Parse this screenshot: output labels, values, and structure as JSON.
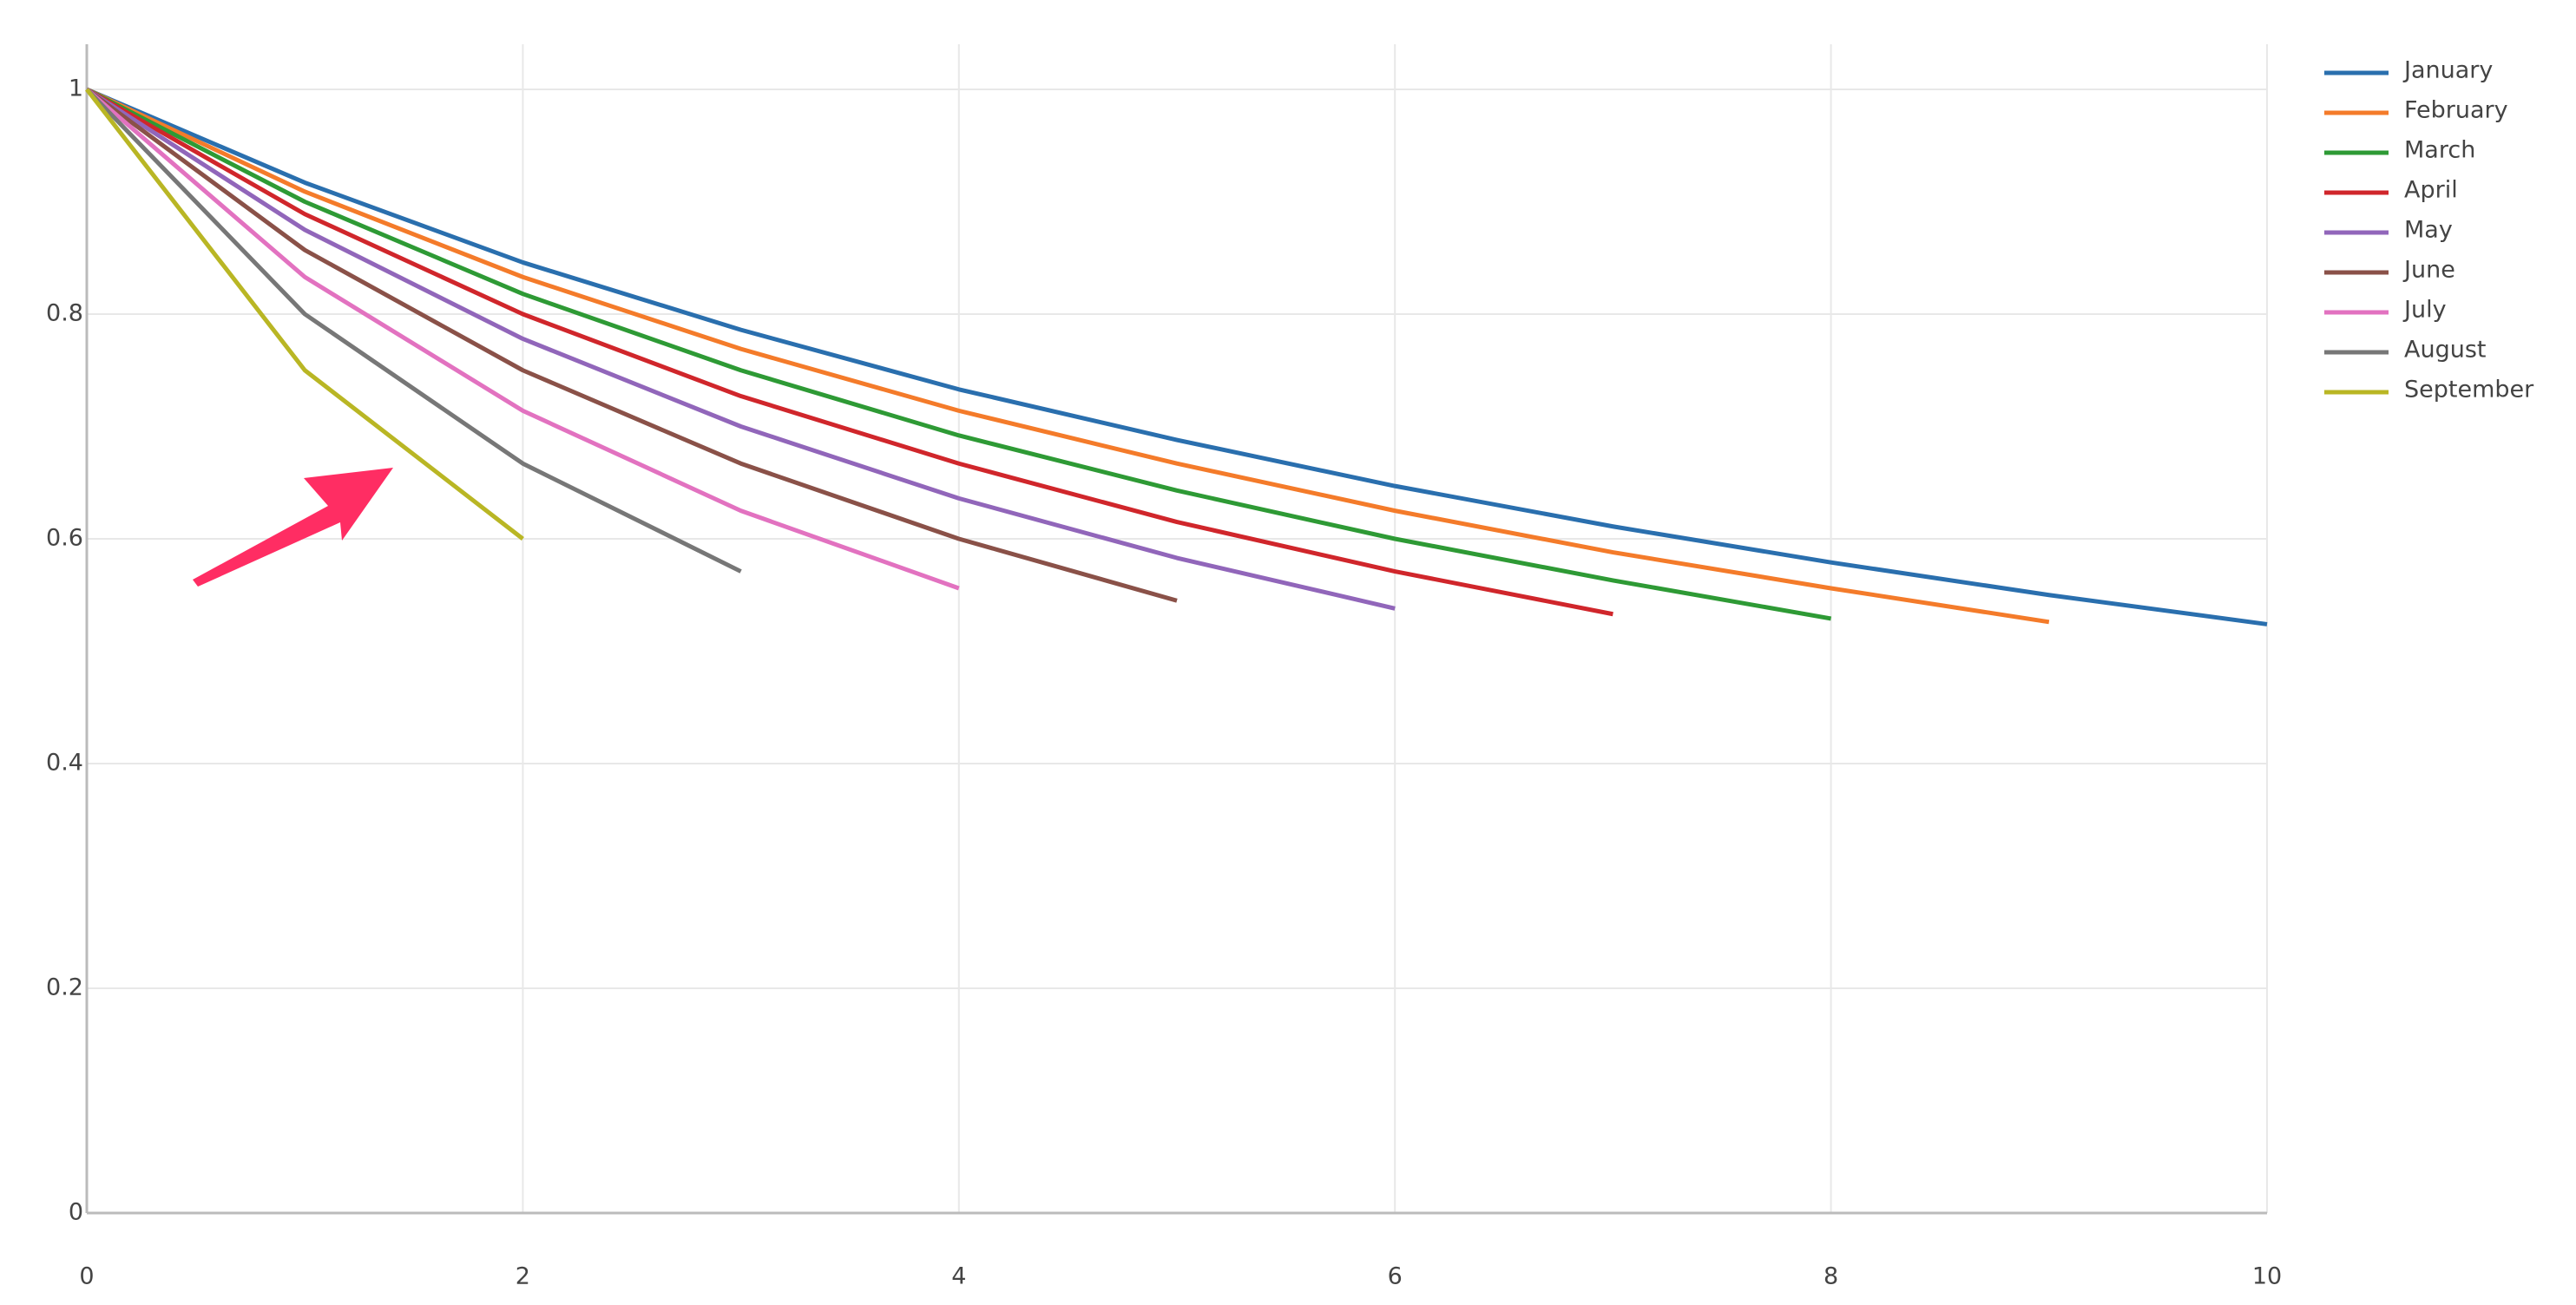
{
  "chart_data": {
    "type": "line",
    "xlim": [
      0,
      10
    ],
    "xticks": [
      0,
      2,
      4,
      6,
      8,
      10
    ],
    "ylim": [
      0,
      1
    ],
    "yticks": [
      0,
      0.2,
      0.4,
      0.6,
      0.8,
      1
    ],
    "grid": true,
    "legend": "right",
    "series": [
      {
        "name": "January",
        "color": "#2a6fae",
        "x": [
          0,
          1,
          2,
          3,
          4,
          5,
          6,
          7,
          8,
          9,
          10
        ],
        "values": [
          1,
          0.917,
          0.846,
          0.786,
          0.733,
          0.688,
          0.647,
          0.611,
          0.579,
          0.55,
          0.524
        ]
      },
      {
        "name": "February",
        "color": "#f47b2a",
        "x": [
          0,
          1,
          2,
          3,
          4,
          5,
          6,
          7,
          8,
          9
        ],
        "values": [
          1,
          0.909,
          0.833,
          0.769,
          0.714,
          0.667,
          0.625,
          0.588,
          0.556,
          0.526
        ]
      },
      {
        "name": "March",
        "color": "#2e9a35",
        "x": [
          0,
          1,
          2,
          3,
          4,
          5,
          6,
          7,
          8
        ],
        "values": [
          1,
          0.9,
          0.818,
          0.75,
          0.692,
          0.643,
          0.6,
          0.563,
          0.529
        ]
      },
      {
        "name": "April",
        "color": "#d0262b",
        "x": [
          0,
          1,
          2,
          3,
          4,
          5,
          6,
          7
        ],
        "values": [
          1,
          0.889,
          0.8,
          0.727,
          0.667,
          0.615,
          0.571,
          0.533
        ]
      },
      {
        "name": "May",
        "color": "#9166ba",
        "x": [
          0,
          1,
          2,
          3,
          4,
          5,
          6
        ],
        "values": [
          1,
          0.875,
          0.778,
          0.7,
          0.636,
          0.583,
          0.538
        ]
      },
      {
        "name": "June",
        "color": "#8a5148",
        "x": [
          0,
          1,
          2,
          3,
          4,
          5
        ],
        "values": [
          1,
          0.857,
          0.75,
          0.667,
          0.6,
          0.545
        ]
      },
      {
        "name": "July",
        "color": "#e272c0",
        "x": [
          0,
          1,
          2,
          3,
          4
        ],
        "values": [
          1,
          0.833,
          0.714,
          0.625,
          0.556
        ]
      },
      {
        "name": "August",
        "color": "#777777",
        "x": [
          0,
          1,
          2,
          3
        ],
        "values": [
          1,
          0.8,
          0.667,
          0.571
        ]
      },
      {
        "name": "September",
        "color": "#b9b624",
        "x": [
          0,
          1,
          2
        ],
        "values": [
          1,
          0.75,
          0.6
        ]
      }
    ]
  }
}
